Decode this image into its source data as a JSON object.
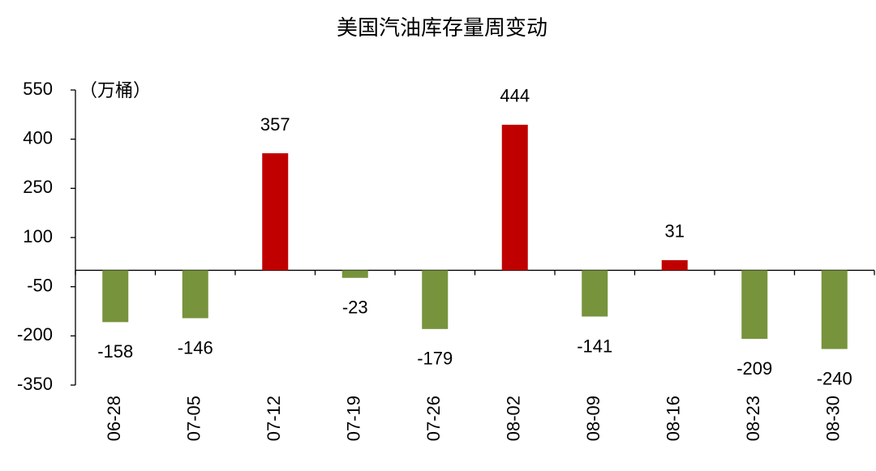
{
  "chart_data": {
    "type": "bar",
    "title": "美国汽油库存量周变动",
    "unit_label": "（万桶）",
    "categories": [
      "06-28",
      "07-05",
      "07-12",
      "07-19",
      "07-26",
      "08-02",
      "08-09",
      "08-16",
      "08-23",
      "08-30"
    ],
    "values": [
      -158,
      -146,
      357,
      -23,
      -179,
      444,
      -141,
      31,
      -209,
      -240
    ],
    "positive_color": "#c00000",
    "negative_color": "#77933c",
    "ylim": [
      -350,
      550
    ],
    "yticks": [
      -350,
      -200,
      -50,
      100,
      250,
      400,
      550
    ],
    "grid": false
  }
}
